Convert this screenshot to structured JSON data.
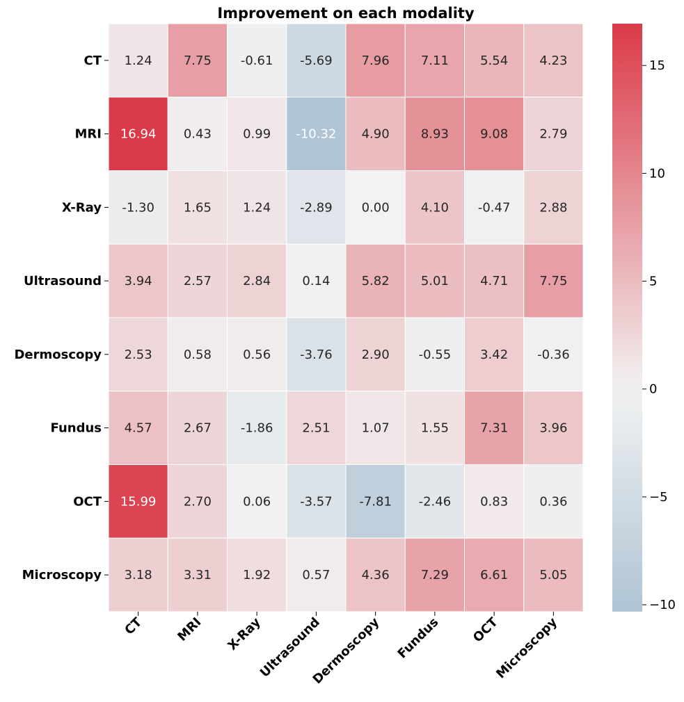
{
  "chart_data": {
    "type": "heatmap",
    "title": "Improvement on each modality",
    "rows": [
      "CT",
      "MRI",
      "X-Ray",
      "Ultrasound",
      "Dermoscopy",
      "Fundus",
      "OCT",
      "Microscopy"
    ],
    "columns": [
      "CT",
      "MRI",
      "X-Ray",
      "Ultrasound",
      "Dermoscopy",
      "Fundus",
      "OCT",
      "Microscopy"
    ],
    "values": [
      [
        1.24,
        7.75,
        -0.61,
        -5.69,
        7.96,
        7.11,
        5.54,
        4.23
      ],
      [
        16.94,
        0.43,
        0.99,
        -10.32,
        4.9,
        8.93,
        9.08,
        2.79
      ],
      [
        -1.3,
        1.65,
        1.24,
        -2.89,
        0.0,
        4.1,
        -0.47,
        2.88
      ],
      [
        3.94,
        2.57,
        2.84,
        0.14,
        5.82,
        5.01,
        4.71,
        7.75
      ],
      [
        2.53,
        0.58,
        0.56,
        -3.76,
        2.9,
        -0.55,
        3.42,
        -0.36
      ],
      [
        4.57,
        2.67,
        -1.86,
        2.51,
        1.07,
        1.55,
        7.31,
        3.96
      ],
      [
        15.99,
        2.7,
        0.06,
        -3.57,
        -7.81,
        -2.46,
        0.83,
        0.36
      ],
      [
        3.18,
        3.31,
        1.92,
        0.57,
        4.36,
        7.29,
        6.61,
        5.05
      ]
    ],
    "value_labels": [
      [
        "1.24",
        "7.75",
        "-0.61",
        "-5.69",
        "7.96",
        "7.11",
        "5.54",
        "4.23"
      ],
      [
        "16.94",
        "0.43",
        "0.99",
        "-10.32",
        "4.90",
        "8.93",
        "9.08",
        "2.79"
      ],
      [
        "-1.30",
        "1.65",
        "1.24",
        "-2.89",
        "0.00",
        "4.10",
        "-0.47",
        "2.88"
      ],
      [
        "3.94",
        "2.57",
        "2.84",
        "0.14",
        "5.82",
        "5.01",
        "4.71",
        "7.75"
      ],
      [
        "2.53",
        "0.58",
        "0.56",
        "-3.76",
        "2.90",
        "-0.55",
        "3.42",
        "-0.36"
      ],
      [
        "4.57",
        "2.67",
        "-1.86",
        "2.51",
        "1.07",
        "1.55",
        "7.31",
        "3.96"
      ],
      [
        "15.99",
        "2.70",
        "0.06",
        "-3.57",
        "-7.81",
        "-2.46",
        "0.83",
        "0.36"
      ],
      [
        "3.18",
        "3.31",
        "1.92",
        "0.57",
        "4.36",
        "7.29",
        "6.61",
        "5.05"
      ]
    ],
    "vmin": -10.32,
    "vmax": 16.94,
    "center": 0,
    "colorbar_ticks": [
      15,
      10,
      5,
      0,
      -5,
      -10
    ],
    "colorbar_tick_labels": [
      "15",
      "10",
      "5",
      "0",
      "−5",
      "−10"
    ],
    "colors": {
      "negative": "#84a7c1",
      "neutral": "#f2f2f2",
      "positive": "#da3a48",
      "text_dark": "#262626",
      "text_light": "#ffffff",
      "grid": "#ffffff"
    }
  }
}
